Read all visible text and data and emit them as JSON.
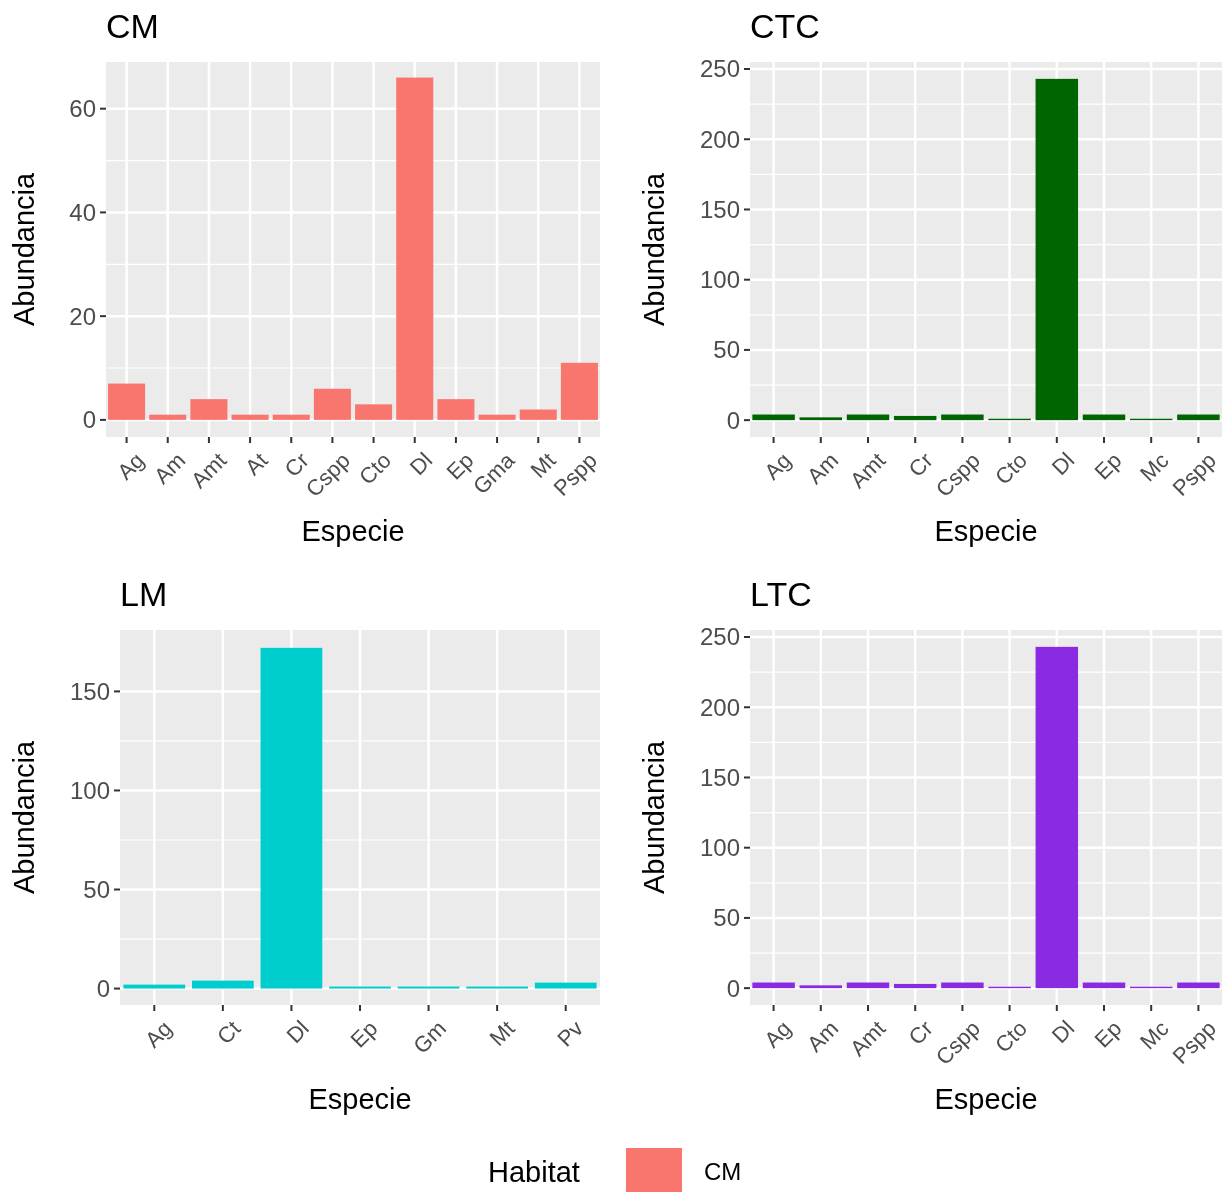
{
  "chart_data": [
    {
      "type": "bar",
      "title": "CM",
      "xlabel": "Especie",
      "ylabel": "Abundancia",
      "categories": [
        "Ag",
        "Am",
        "Amt",
        "At",
        "Cr",
        "Cspp",
        "Cto",
        "Dl",
        "Ep",
        "Gma",
        "Mt",
        "Pspp"
      ],
      "series": [
        {
          "name": "CM",
          "color": "#f8766d",
          "values": [
            7,
            1,
            4,
            1,
            1,
            6,
            3,
            66,
            4,
            1,
            2,
            11
          ]
        }
      ],
      "ylim": [
        -3.3,
        69
      ],
      "yticks": [
        0,
        20,
        40,
        60
      ],
      "grid": true,
      "legend": "bottom",
      "legend_title": "Habitat"
    },
    {
      "type": "bar",
      "title": "CTC",
      "xlabel": "Especie",
      "ylabel": "Abundancia",
      "categories": [
        "Ag",
        "Am",
        "Amt",
        "Cr",
        "Cspp",
        "Cto",
        "Dl",
        "Ep",
        "Mc",
        "Pspp"
      ],
      "series": [
        {
          "color": "#006400",
          "values": [
            4,
            2,
            4,
            3,
            4,
            1,
            243,
            4,
            1,
            4
          ]
        }
      ],
      "ylim": [
        -12,
        255
      ],
      "yticks": [
        0,
        50,
        100,
        150,
        200,
        250
      ],
      "grid": true
    },
    {
      "type": "bar",
      "title": "LM",
      "xlabel": "Especie",
      "ylabel": "Abundancia",
      "categories": [
        "Ag",
        "Ct",
        "Dl",
        "Ep",
        "Gm",
        "Mt",
        "Pv"
      ],
      "series": [
        {
          "color": "#00cdcd",
          "values": [
            2,
            4,
            172,
            1,
            1,
            1,
            3
          ]
        }
      ],
      "ylim": [
        -8.3,
        181
      ],
      "yticks": [
        0,
        50,
        100,
        150
      ],
      "grid": true
    },
    {
      "type": "bar",
      "title": "LTC",
      "xlabel": "Especie",
      "ylabel": "Abundancia",
      "categories": [
        "Ag",
        "Am",
        "Amt",
        "Cr",
        "Cspp",
        "Cto",
        "Dl",
        "Ep",
        "Mc",
        "Pspp"
      ],
      "series": [
        {
          "color": "#8a2be2",
          "values": [
            4,
            2,
            4,
            3,
            4,
            1,
            243,
            4,
            1,
            4
          ]
        }
      ],
      "ylim": [
        -12,
        255
      ],
      "yticks": [
        0,
        50,
        100,
        150,
        200,
        250
      ],
      "grid": true
    }
  ]
}
